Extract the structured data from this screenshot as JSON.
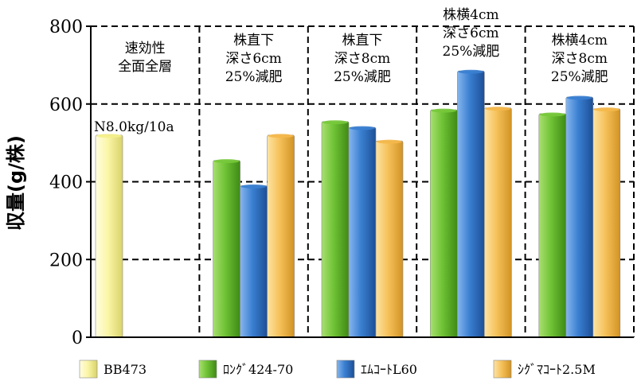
{
  "chart_data": {
    "type": "bar",
    "ylabel": "収量(g/株)",
    "ylim": [
      0,
      800
    ],
    "yticks": [
      0,
      200,
      400,
      600,
      800
    ],
    "grid": true,
    "legend_position": "bottom",
    "series": [
      {
        "name": "BB473",
        "color": "#f4ef8a",
        "values": [
          520,
          null,
          null,
          null,
          null
        ]
      },
      {
        "name": "ﾛﾝｸﾞ424-70",
        "color": "#77c93a",
        "values": [
          null,
          455,
          555,
          585,
          575
        ]
      },
      {
        "name": "ｴﾑｺｰﾄL60",
        "color": "#3a7fd1",
        "values": [
          null,
          390,
          540,
          685,
          618
        ]
      },
      {
        "name": "ｼｸﾞﾏｺｰﾄ2.5M",
        "color": "#f5b84a",
        "values": [
          null,
          520,
          505,
          590,
          588
        ]
      }
    ],
    "groups": [
      {
        "lines": [
          "速効性",
          "全面全層"
        ]
      },
      {
        "lines": [
          "株直下",
          "深さ6cm",
          "25%減肥"
        ]
      },
      {
        "lines": [
          "株直下",
          "深さ8cm",
          "25%減肥"
        ]
      },
      {
        "lines": [
          "株横4cm",
          "深さ6cm",
          "25%減肥"
        ]
      },
      {
        "lines": [
          "株横4cm",
          "深さ8cm",
          "25%減肥"
        ]
      }
    ],
    "annotation": "N8.0kg/10a"
  }
}
